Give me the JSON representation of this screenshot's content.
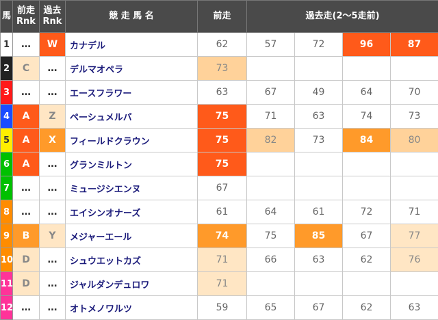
{
  "headers": {
    "num": "馬",
    "prev_rank": "前走\nRnk",
    "past_rank": "過去\nRnk",
    "name": "競 走 馬 名",
    "prev": "前走",
    "past": "過去走(2〜5走前)"
  },
  "colors": {
    "frame1": "#ffffff",
    "frame2": "#222222",
    "frame3": "#ff1a1a",
    "frame4": "#1a4cff",
    "frame5": "#ffee00",
    "frame6": "#00c000",
    "frame7": "#ff8c00",
    "frame8": "#ff3399"
  },
  "rows": [
    {
      "num": "1",
      "frame": "#ffffff",
      "numColor": "#333",
      "prev_rank": "…",
      "past_rank": "W",
      "name": "カナデル",
      "prev": "62",
      "prevCls": "plain",
      "past": [
        {
          "v": "57",
          "c": "plain"
        },
        {
          "v": "72",
          "c": "plain"
        },
        {
          "v": "96",
          "c": "h1"
        },
        {
          "v": "87",
          "c": "h1"
        }
      ]
    },
    {
      "num": "2",
      "frame": "#222222",
      "numColor": "#fff",
      "prev_rank": "C",
      "past_rank": "…",
      "name": "デルマオペラ",
      "prev": "73",
      "prevCls": "h3",
      "past": [
        {
          "v": "",
          "c": "empty"
        },
        {
          "v": "",
          "c": "empty"
        },
        {
          "v": "",
          "c": "empty"
        },
        {
          "v": "",
          "c": "empty"
        }
      ]
    },
    {
      "num": "3",
      "frame": "#ff1a1a",
      "numColor": "#fff",
      "prev_rank": "…",
      "past_rank": "…",
      "name": "エースフラワー",
      "prev": "63",
      "prevCls": "plain",
      "past": [
        {
          "v": "67",
          "c": "plain"
        },
        {
          "v": "49",
          "c": "plain"
        },
        {
          "v": "64",
          "c": "plain"
        },
        {
          "v": "70",
          "c": "plain"
        }
      ]
    },
    {
      "num": "4",
      "frame": "#1a4cff",
      "numColor": "#fff",
      "prev_rank": "A",
      "past_rank": "Z",
      "name": "ペーシュメルバ",
      "prev": "75",
      "prevCls": "h1",
      "past": [
        {
          "v": "71",
          "c": "plain"
        },
        {
          "v": "63",
          "c": "plain"
        },
        {
          "v": "74",
          "c": "plain"
        },
        {
          "v": "73",
          "c": "plain"
        }
      ]
    },
    {
      "num": "5",
      "frame": "#ffee00",
      "numColor": "#333",
      "prev_rank": "A",
      "past_rank": "X",
      "name": "フィールドクラウン",
      "prev": "75",
      "prevCls": "h1",
      "past": [
        {
          "v": "82",
          "c": "h3"
        },
        {
          "v": "73",
          "c": "plain"
        },
        {
          "v": "84",
          "c": "h2"
        },
        {
          "v": "80",
          "c": "h3"
        }
      ]
    },
    {
      "num": "6",
      "frame": "#00c000",
      "numColor": "#fff",
      "prev_rank": "A",
      "past_rank": "…",
      "name": "グランミルトン",
      "prev": "75",
      "prevCls": "h1",
      "past": [
        {
          "v": "",
          "c": "empty"
        },
        {
          "v": "",
          "c": "empty"
        },
        {
          "v": "",
          "c": "empty"
        },
        {
          "v": "",
          "c": "empty"
        }
      ]
    },
    {
      "num": "7",
      "frame": "#00c000",
      "numColor": "#fff",
      "prev_rank": "…",
      "past_rank": "…",
      "name": "ミュージシエンヌ",
      "prev": "67",
      "prevCls": "plain",
      "past": [
        {
          "v": "",
          "c": "empty"
        },
        {
          "v": "",
          "c": "empty"
        },
        {
          "v": "",
          "c": "empty"
        },
        {
          "v": "",
          "c": "empty"
        }
      ]
    },
    {
      "num": "8",
      "frame": "#ff8c00",
      "numColor": "#fff",
      "prev_rank": "…",
      "past_rank": "…",
      "name": "エイシンオナーズ",
      "prev": "61",
      "prevCls": "plain",
      "past": [
        {
          "v": "64",
          "c": "plain"
        },
        {
          "v": "61",
          "c": "plain"
        },
        {
          "v": "72",
          "c": "plain"
        },
        {
          "v": "71",
          "c": "plain"
        }
      ]
    },
    {
      "num": "9",
      "frame": "#ff8c00",
      "numColor": "#fff",
      "prev_rank": "B",
      "past_rank": "Y",
      "name": "メジャーエール",
      "prev": "74",
      "prevCls": "h2",
      "past": [
        {
          "v": "75",
          "c": "plain"
        },
        {
          "v": "85",
          "c": "h2"
        },
        {
          "v": "67",
          "c": "plain"
        },
        {
          "v": "77",
          "c": "h4"
        }
      ]
    },
    {
      "num": "10",
      "frame": "#ff8c00",
      "numColor": "#fff",
      "prev_rank": "D",
      "past_rank": "…",
      "name": "シュウエットカズ",
      "prev": "71",
      "prevCls": "h4",
      "past": [
        {
          "v": "66",
          "c": "plain"
        },
        {
          "v": "63",
          "c": "plain"
        },
        {
          "v": "62",
          "c": "plain"
        },
        {
          "v": "76",
          "c": "h4"
        }
      ]
    },
    {
      "num": "11",
      "frame": "#ff3399",
      "numColor": "#fff",
      "prev_rank": "D",
      "past_rank": "…",
      "name": "ジャルダンデュロワ",
      "prev": "71",
      "prevCls": "h4",
      "past": [
        {
          "v": "",
          "c": "empty"
        },
        {
          "v": "",
          "c": "empty"
        },
        {
          "v": "",
          "c": "empty"
        },
        {
          "v": "",
          "c": "empty"
        }
      ]
    },
    {
      "num": "12",
      "frame": "#ff3399",
      "numColor": "#fff",
      "prev_rank": "…",
      "past_rank": "…",
      "name": "オトメノワルツ",
      "prev": "59",
      "prevCls": "plain",
      "past": [
        {
          "v": "65",
          "c": "plain"
        },
        {
          "v": "67",
          "c": "plain"
        },
        {
          "v": "62",
          "c": "plain"
        },
        {
          "v": "63",
          "c": "plain"
        }
      ]
    }
  ]
}
